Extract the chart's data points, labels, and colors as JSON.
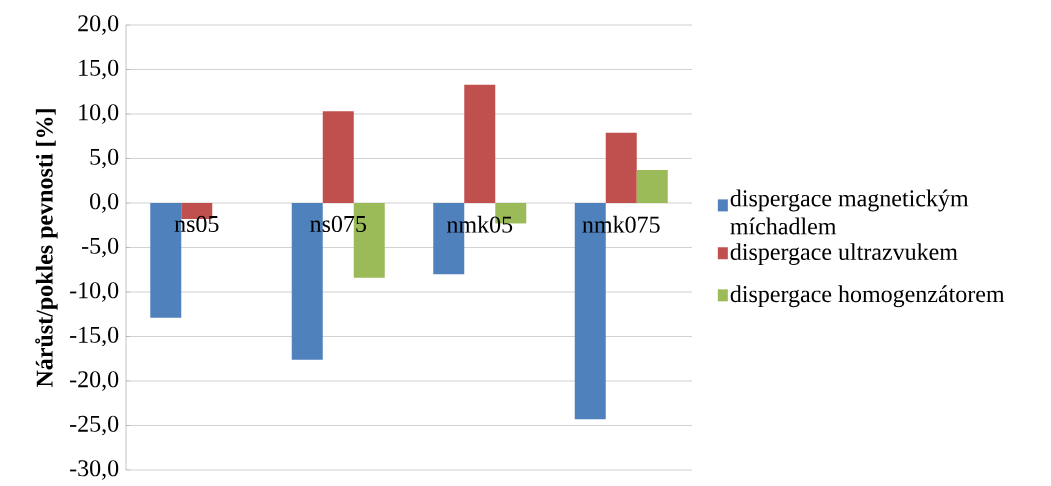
{
  "chart_data": {
    "type": "bar",
    "ylabel": "Nárůst/pokles pevnosti  [%]",
    "categories": [
      "ns05",
      "ns075",
      "nmk05",
      "nmk075"
    ],
    "series": [
      {
        "name": "dispergace magnetickým míchadlem",
        "color": "#4f81bd",
        "values": [
          -12.9,
          -17.6,
          -8.0,
          -24.3
        ]
      },
      {
        "name": "dispergace ultrazvukem",
        "color": "#c0504d",
        "values": [
          -1.8,
          10.3,
          13.3,
          7.9
        ]
      },
      {
        "name": "dispergace homogenzátorem",
        "color": "#9bbb59",
        "values": [
          null,
          -8.4,
          -2.3,
          3.7
        ]
      }
    ],
    "ylim": [
      -30,
      20
    ],
    "yticks": [
      {
        "value": -30,
        "label": "-30,0"
      },
      {
        "value": -25,
        "label": "-25,0"
      },
      {
        "value": -20,
        "label": "-20,0"
      },
      {
        "value": -15,
        "label": "-15,0"
      },
      {
        "value": -10,
        "label": "-10,0"
      },
      {
        "value": -5,
        "label": "-5,0"
      },
      {
        "value": 0,
        "label": "0,0"
      },
      {
        "value": 5,
        "label": "5,0"
      },
      {
        "value": 10,
        "label": "10,0"
      },
      {
        "value": 15,
        "label": "15,0"
      },
      {
        "value": 20,
        "label": "20,0"
      }
    ],
    "grid": "y",
    "legend": "right"
  }
}
